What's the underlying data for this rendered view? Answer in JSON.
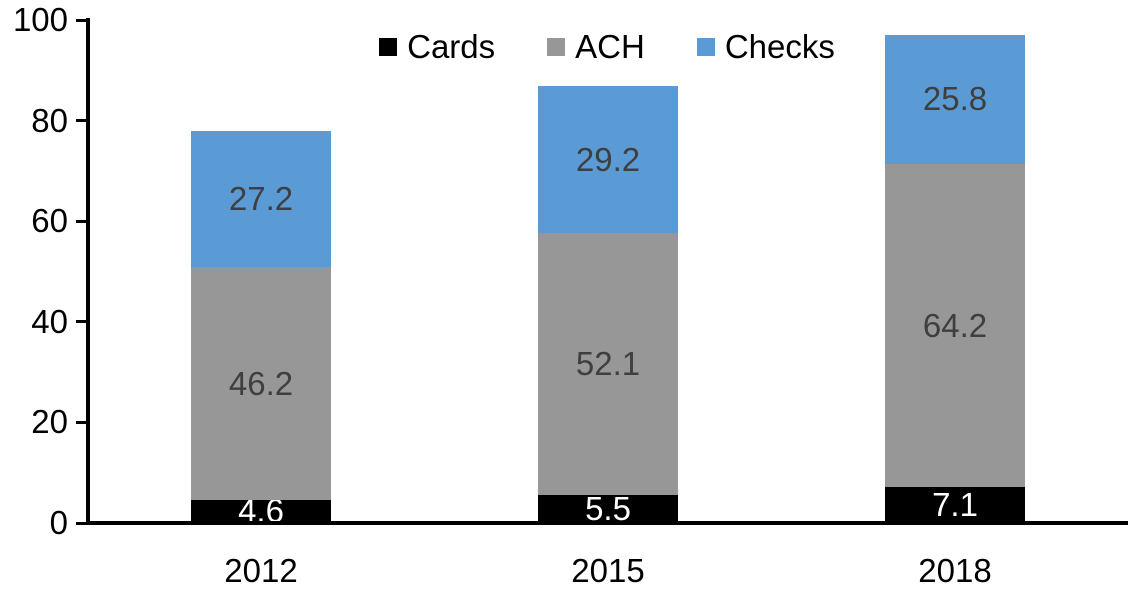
{
  "chart_data": {
    "type": "bar",
    "stacked": true,
    "title": "",
    "xlabel": "",
    "ylabel": "",
    "categories": [
      "2012",
      "2015",
      "2018"
    ],
    "series": [
      {
        "name": "Cards",
        "color": "#000000",
        "label_color": "#ffffff",
        "values": [
          4.6,
          5.5,
          7.1
        ]
      },
      {
        "name": "ACH",
        "color": "#979797",
        "label_color": "#3f3f3f",
        "values": [
          46.2,
          52.1,
          64.2
        ]
      },
      {
        "name": "Checks",
        "color": "#5b9bd5",
        "label_color": "#3f3f3f",
        "values": [
          27.2,
          29.2,
          25.8
        ]
      }
    ],
    "data_labels": true,
    "ylim": [
      0,
      100
    ],
    "yticks": [
      0,
      20,
      40,
      60,
      80,
      100
    ],
    "grid": false,
    "legend_position": "top",
    "axis_color": "#000000",
    "tick_label_color": "#000000"
  }
}
